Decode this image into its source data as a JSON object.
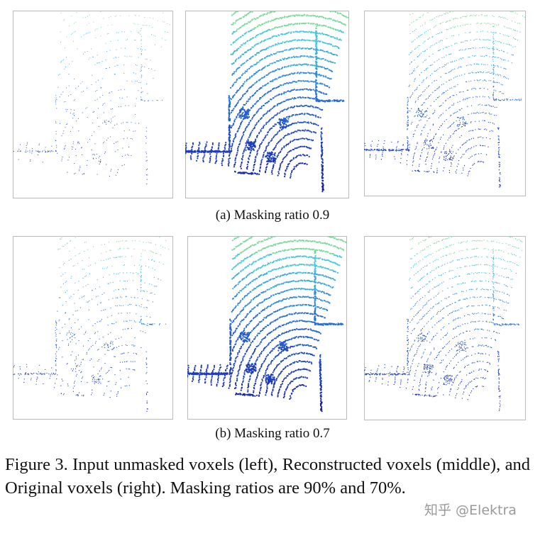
{
  "subfigures": [
    {
      "caption": "(a) Masking ratio 0.9"
    },
    {
      "caption": "(b) Masking ratio 0.7"
    }
  ],
  "figure_caption": "Figure 3. Input unmasked voxels (left), Reconstructed voxels (middle), and Original voxels (right). Masking ratios are 90% and 70%.",
  "watermark": "知乎 @Elektra"
}
